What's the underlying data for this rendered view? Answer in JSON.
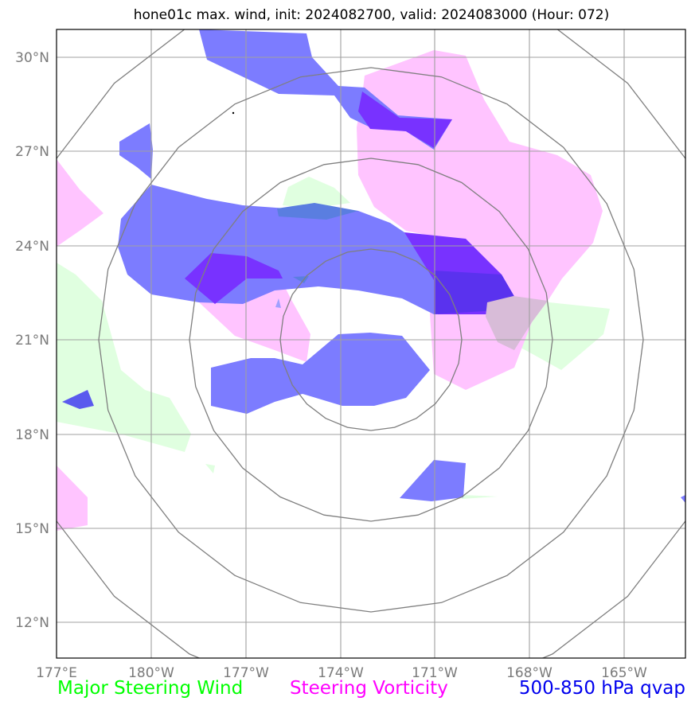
{
  "title": "hone01c max. wind, init: 2024082700, valid: 2024083000 (Hour: 072)",
  "lat_labels": [
    "30°N",
    "27°N",
    "24°N",
    "21°N",
    "18°N",
    "15°N",
    "12°N"
  ],
  "lon_labels": [
    "177°E",
    "180°W",
    "177°W",
    "174°W",
    "171°W",
    "168°W",
    "165°W"
  ],
  "legend": {
    "wind": "Major Steering Wind",
    "vorticity": "Steering Vorticity",
    "qvap": "500-850 hPa qvap"
  },
  "colors": {
    "wind": "#00ff00",
    "wind_fill": "#e0ffe0",
    "vorticity": "#ff00ff",
    "vorticity_fill": "#ffc4ff",
    "qvap": "#0000ee",
    "qvap_fill": "#7c7cff",
    "qvap_dark": "#7832ff",
    "grid": "#a0a0a0",
    "rings": "#7f7f7f"
  }
}
